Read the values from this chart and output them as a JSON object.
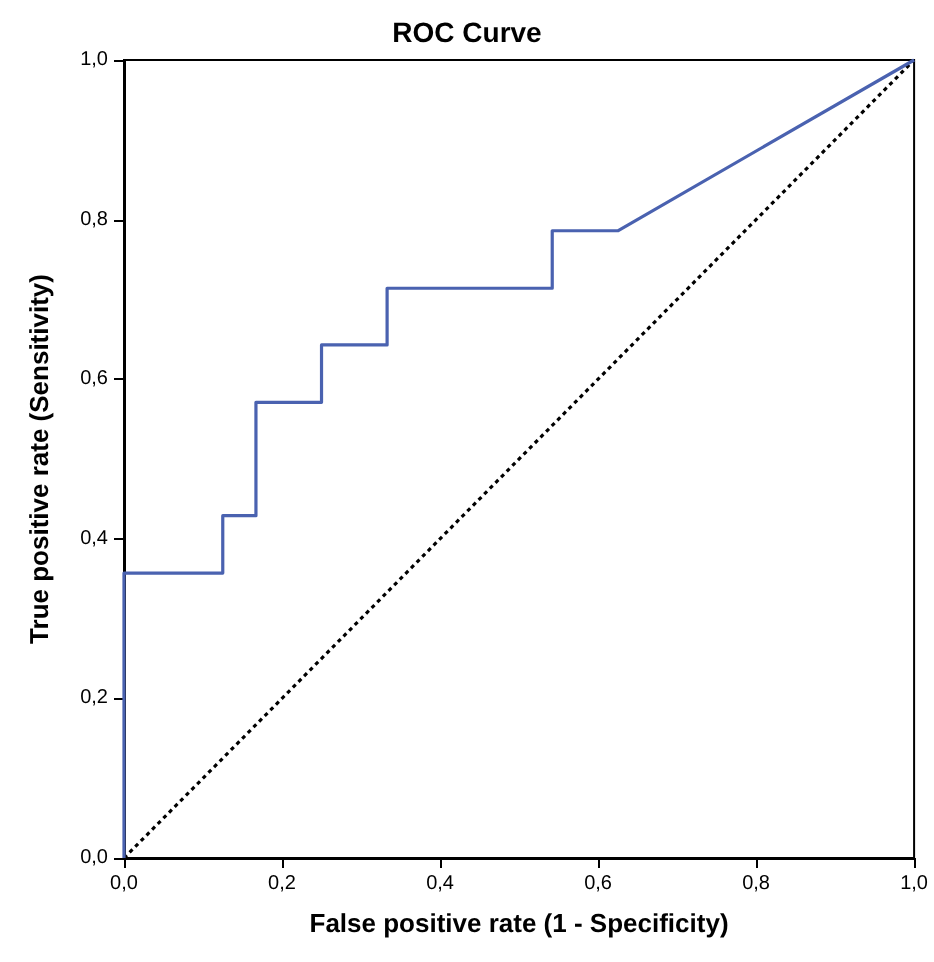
{
  "chart_data": {
    "type": "line",
    "title": "ROC Curve",
    "xlabel": "False positive rate (1 - Specificity)",
    "ylabel": "True positive rate (Sensitivity)",
    "xlim": [
      0,
      1
    ],
    "ylim": [
      0,
      1
    ],
    "xticks": [
      {
        "value": 0,
        "label": "0,0"
      },
      {
        "value": 0.2,
        "label": "0,2"
      },
      {
        "value": 0.4,
        "label": "0,4"
      },
      {
        "value": 0.6,
        "label": "0,6"
      },
      {
        "value": 0.8,
        "label": "0,8"
      },
      {
        "value": 1,
        "label": "1,0"
      }
    ],
    "yticks": [
      {
        "value": 0,
        "label": "0,0"
      },
      {
        "value": 0.2,
        "label": "0,2"
      },
      {
        "value": 0.4,
        "label": "0,4"
      },
      {
        "value": 0.6,
        "label": "0,6"
      },
      {
        "value": 0.8,
        "label": "0,8"
      },
      {
        "value": 1,
        "label": "1,0"
      }
    ],
    "grid": false,
    "marker": "none",
    "series": [
      {
        "color": "#4a62b0",
        "line_style": "solid",
        "x": [
          0,
          0,
          0.125,
          0.125,
          0.167,
          0.167,
          0.25,
          0.25,
          0.333,
          0.333,
          0.542,
          0.542,
          0.625,
          1
        ],
        "values": [
          0,
          0.357,
          0.357,
          0.429,
          0.429,
          0.571,
          0.571,
          0.643,
          0.643,
          0.714,
          0.714,
          0.786,
          0.786,
          1
        ]
      },
      {
        "color": "#000000",
        "line_style": "dotted",
        "x": [
          0,
          1
        ],
        "values": [
          0,
          1
        ]
      }
    ]
  }
}
